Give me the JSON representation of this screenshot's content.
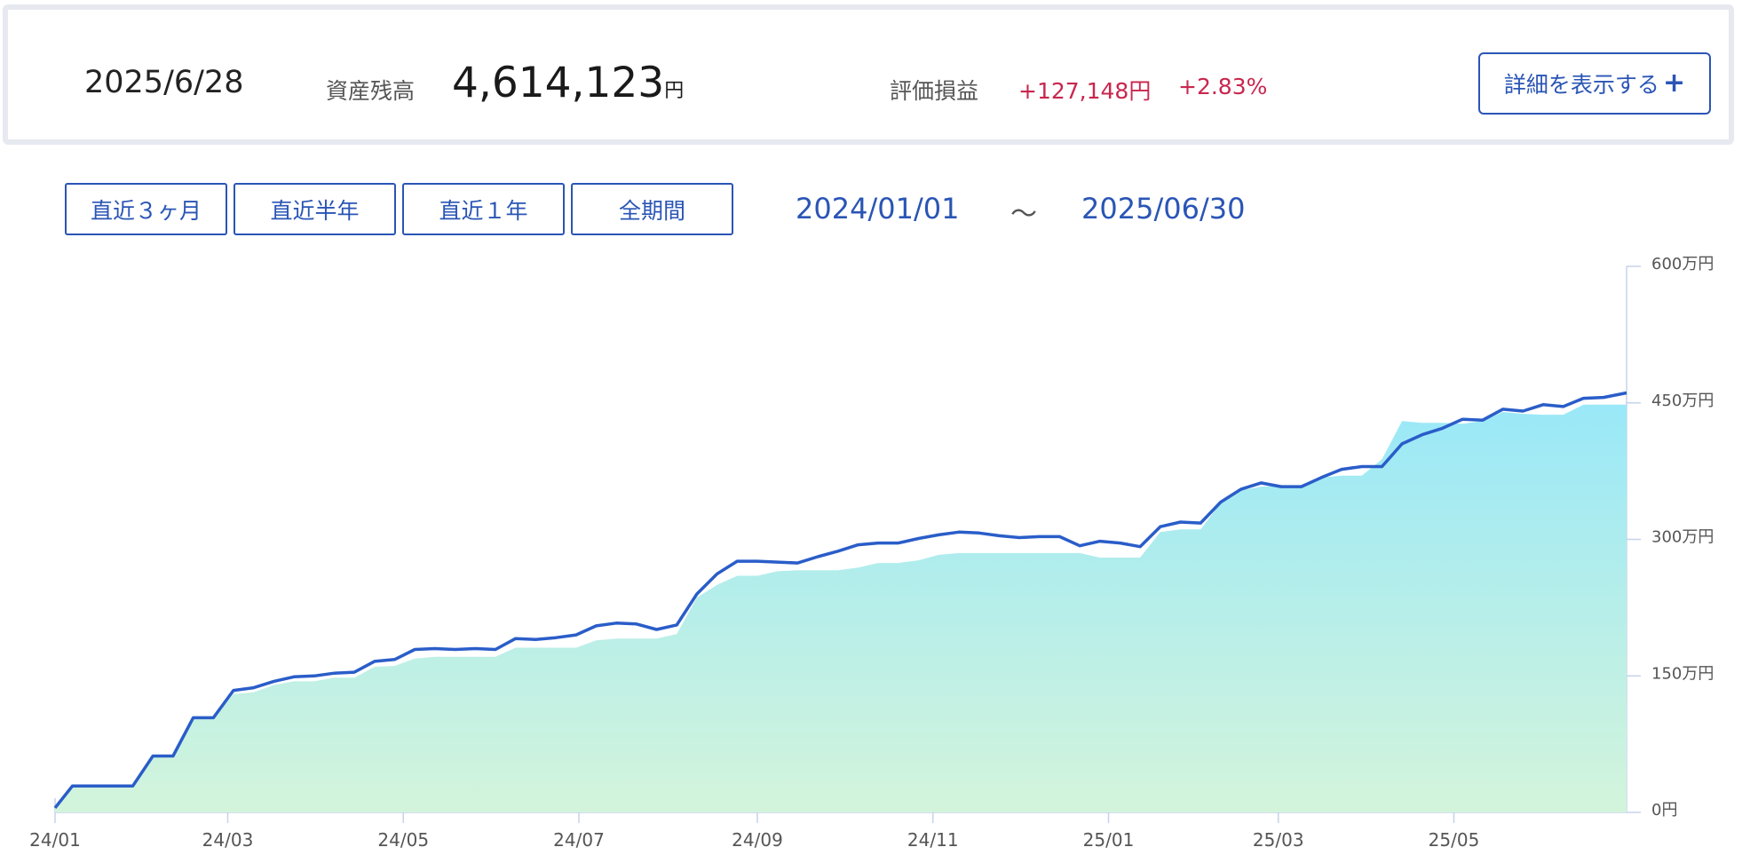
{
  "summary": {
    "date": "2025/6/28",
    "balance_label": "資産残高",
    "balance_value": "4,614,123",
    "balance_unit": "円",
    "pl_label": "評価損益",
    "pl_amount": "+127,148円",
    "pl_percent": "+2.83%",
    "detail_button": "詳細を表示する"
  },
  "period_buttons": [
    "直近３ヶ月",
    "直近半年",
    "直近１年",
    "全期間"
  ],
  "range": {
    "start": "2024/01/01",
    "separator": "～",
    "end": "2025/06/30"
  },
  "colors": {
    "accent": "#2a55b5",
    "loss_profit": "#c8274e",
    "line": "#2a5dc9",
    "area_top": "#9ae8f8",
    "area_bottom": "#d3f4db"
  },
  "chart_data": {
    "type": "area",
    "title": "",
    "y_unit": "万円",
    "ylim": [
      0,
      600
    ],
    "y_ticks": [
      0,
      150,
      300,
      450,
      600
    ],
    "y_tick_labels": [
      "0円",
      "150万円",
      "300万円",
      "450万円",
      "600万円"
    ],
    "y_axis_position": "right",
    "x_tick_labels": [
      "24/01",
      "24/03",
      "24/05",
      "24/07",
      "24/09",
      "24/11",
      "25/01",
      "25/03",
      "25/05"
    ],
    "x_tick_dates": [
      "2024-01-01",
      "2024-03-01",
      "2024-05-01",
      "2024-07-01",
      "2024-09-01",
      "2024-11-01",
      "2025-01-01",
      "2025-03-01",
      "2025-05-01"
    ],
    "xlim": [
      "2024-01-01",
      "2025-06-30"
    ],
    "series": [
      {
        "kind": "line",
        "x": [
          "2024-01-01",
          "2024-01-07",
          "2024-01-14",
          "2024-01-21",
          "2024-01-28",
          "2024-02-04",
          "2024-02-11",
          "2024-02-18",
          "2024-02-25",
          "2024-03-03",
          "2024-03-10",
          "2024-03-17",
          "2024-03-24",
          "2024-03-31",
          "2024-04-07",
          "2024-04-14",
          "2024-04-21",
          "2024-04-28",
          "2024-05-05",
          "2024-05-12",
          "2024-05-19",
          "2024-05-26",
          "2024-06-02",
          "2024-06-09",
          "2024-06-16",
          "2024-06-23",
          "2024-06-30",
          "2024-07-07",
          "2024-07-14",
          "2024-07-21",
          "2024-07-28",
          "2024-08-04",
          "2024-08-11",
          "2024-08-18",
          "2024-08-25",
          "2024-09-01",
          "2024-09-08",
          "2024-09-15",
          "2024-09-22",
          "2024-09-29",
          "2024-10-06",
          "2024-10-13",
          "2024-10-20",
          "2024-10-27",
          "2024-11-03",
          "2024-11-10",
          "2024-11-17",
          "2024-11-24",
          "2024-12-01",
          "2024-12-08",
          "2024-12-15",
          "2024-12-22",
          "2024-12-29",
          "2025-01-05",
          "2025-01-12",
          "2025-01-19",
          "2025-01-26",
          "2025-02-02",
          "2025-02-09",
          "2025-02-16",
          "2025-02-23",
          "2025-03-02",
          "2025-03-09",
          "2025-03-16",
          "2025-03-23",
          "2025-03-30",
          "2025-04-06",
          "2025-04-13",
          "2025-04-20",
          "2025-04-27",
          "2025-05-04",
          "2025-05-11",
          "2025-05-18",
          "2025-05-25",
          "2025-06-01",
          "2025-06-08",
          "2025-06-15",
          "2025-06-22",
          "2025-06-30"
        ],
        "y": [
          5,
          29,
          29,
          29,
          29,
          62,
          62,
          104,
          104,
          134,
          137,
          144,
          149,
          150,
          153,
          154,
          166,
          168,
          179,
          180,
          179,
          180,
          179,
          191,
          190,
          192,
          195,
          205,
          208,
          207,
          201,
          206,
          240,
          262,
          276,
          276,
          275,
          274,
          281,
          287,
          294,
          296,
          296,
          301,
          305,
          308,
          307,
          304,
          302,
          303,
          303,
          293,
          298,
          296,
          292,
          314,
          319,
          318,
          341,
          355,
          362,
          358,
          358,
          368,
          377,
          380,
          380,
          405,
          415,
          422,
          432,
          431,
          443,
          441,
          448,
          446,
          455,
          456,
          461
        ]
      },
      {
        "kind": "area",
        "x": [
          "2024-01-01",
          "2024-01-07",
          "2024-01-14",
          "2024-01-21",
          "2024-01-28",
          "2024-02-04",
          "2024-02-11",
          "2024-02-18",
          "2024-02-25",
          "2024-03-03",
          "2024-03-10",
          "2024-03-17",
          "2024-03-24",
          "2024-03-31",
          "2024-04-07",
          "2024-04-14",
          "2024-04-21",
          "2024-04-28",
          "2024-05-05",
          "2024-05-12",
          "2024-05-19",
          "2024-05-26",
          "2024-06-02",
          "2024-06-09",
          "2024-06-16",
          "2024-06-23",
          "2024-06-30",
          "2024-07-07",
          "2024-07-14",
          "2024-07-21",
          "2024-07-28",
          "2024-08-04",
          "2024-08-11",
          "2024-08-18",
          "2024-08-25",
          "2024-09-01",
          "2024-09-08",
          "2024-09-15",
          "2024-09-22",
          "2024-09-29",
          "2024-10-06",
          "2024-10-13",
          "2024-10-20",
          "2024-10-27",
          "2024-11-03",
          "2024-11-10",
          "2024-11-17",
          "2024-11-24",
          "2024-12-01",
          "2024-12-08",
          "2024-12-15",
          "2024-12-22",
          "2024-12-29",
          "2025-01-05",
          "2025-01-12",
          "2025-01-19",
          "2025-01-26",
          "2025-02-02",
          "2025-02-09",
          "2025-02-16",
          "2025-02-23",
          "2025-03-02",
          "2025-03-09",
          "2025-03-16",
          "2025-03-23",
          "2025-03-30",
          "2025-04-06",
          "2025-04-13",
          "2025-04-20",
          "2025-04-27",
          "2025-05-04",
          "2025-05-11",
          "2025-05-18",
          "2025-05-25",
          "2025-06-01",
          "2025-06-08",
          "2025-06-15",
          "2025-06-22",
          "2025-06-30"
        ],
        "y": [
          5,
          29,
          29,
          29,
          29,
          62,
          62,
          104,
          104,
          130,
          132,
          140,
          144,
          144,
          148,
          148,
          160,
          161,
          169,
          171,
          171,
          171,
          171,
          181,
          181,
          181,
          181,
          189,
          191,
          191,
          191,
          196,
          236,
          250,
          260,
          260,
          265,
          266,
          266,
          266,
          269,
          274,
          274,
          277,
          283,
          285,
          285,
          285,
          285,
          285,
          285,
          285,
          280,
          280,
          280,
          308,
          311,
          311,
          340,
          354,
          358,
          359,
          359,
          368,
          370,
          370,
          388,
          430,
          428,
          428,
          427,
          430,
          440,
          438,
          437,
          437,
          448,
          448,
          448
        ]
      }
    ]
  }
}
